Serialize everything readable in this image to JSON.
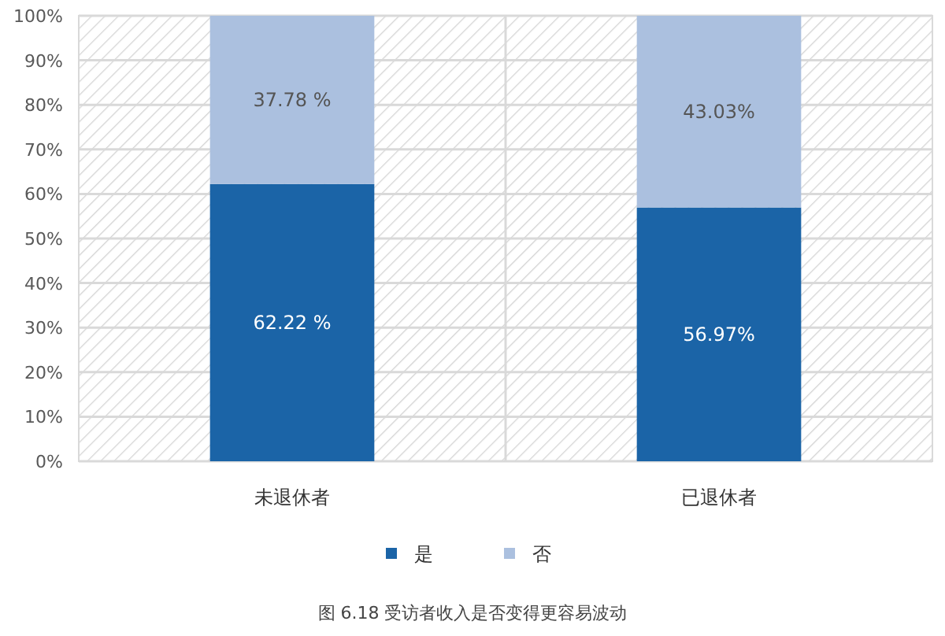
{
  "chart_data": {
    "type": "bar",
    "title": "图 6.18 受访者收入是否变得更容易波动",
    "categories": [
      "未退休者",
      "已退休者"
    ],
    "stacked": true,
    "series": [
      {
        "name": "是",
        "color": "#1b64a7",
        "values": [
          62.22,
          56.97
        ],
        "value_labels": [
          "62.22 %",
          "56.97%"
        ]
      },
      {
        "name": "否",
        "color": "#abc0df",
        "values": [
          37.78,
          43.03
        ],
        "value_labels": [
          "37.78 %",
          "43.03%"
        ]
      }
    ],
    "ylim": [
      0,
      100
    ],
    "yticks": [
      {
        "value": 0,
        "label": "0%"
      },
      {
        "value": 10,
        "label": "10%"
      },
      {
        "value": 20,
        "label": "20%"
      },
      {
        "value": 30,
        "label": "30%"
      },
      {
        "value": 40,
        "label": "40%"
      },
      {
        "value": 50,
        "label": "50%"
      },
      {
        "value": 60,
        "label": "60%"
      },
      {
        "value": 70,
        "label": "70%"
      },
      {
        "value": 80,
        "label": "80%"
      },
      {
        "value": 90,
        "label": "90%"
      },
      {
        "value": 100,
        "label": "100%"
      }
    ],
    "grid": "y",
    "legend": "bottom"
  }
}
